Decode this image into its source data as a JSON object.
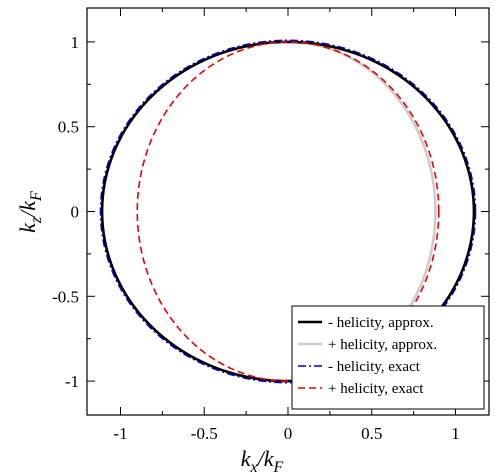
{
  "chart_data": {
    "type": "line",
    "title": "",
    "xlabel": {
      "main": "k",
      "sub1": "x",
      "sep": "/k",
      "sub2": "F"
    },
    "ylabel": {
      "main": "k",
      "sub1": "z",
      "sep": "/k",
      "sub2": "F"
    },
    "xlim": [
      -1.2,
      1.2
    ],
    "ylim": [
      -1.2,
      1.2
    ],
    "xticks": [
      -1,
      -0.5,
      0,
      0.5,
      1
    ],
    "xtick_labels": [
      "-1",
      "-0.5",
      "0",
      "0.5",
      "1"
    ],
    "yticks": [
      -1,
      -0.5,
      0,
      0.5,
      1
    ],
    "ytick_labels": [
      "-1",
      "-0.5",
      "0",
      "0.5",
      "1"
    ],
    "grid": false,
    "legend_position": "bottom-right",
    "series": [
      {
        "name": "- helicity, approx.",
        "color": "#000000",
        "style": "solid",
        "shape": "ellipse",
        "center": [
          0,
          0
        ],
        "semi_axis_x": 1.11,
        "semi_axis_z": 1.0
      },
      {
        "name": "+ helicity, approx.",
        "color": "#cccccc",
        "style": "solid",
        "shape": "half_crescent",
        "center": [
          0,
          0
        ],
        "semi_axis_x": 0.88,
        "semi_axis_z": 1.0,
        "x_range": [
          -0.88,
          0.88
        ]
      },
      {
        "name": "- helicity, exact",
        "color": "#0000cc",
        "style": "dashdot",
        "shape": "ellipse",
        "center": [
          0,
          0
        ],
        "semi_axis_x": 1.12,
        "semi_axis_z": 1.01
      },
      {
        "name": "+ helicity, exact",
        "color": "#ee0000",
        "style": "dashed",
        "shape": "ellipse",
        "center": [
          0,
          0
        ],
        "semi_axis_x": 0.9,
        "semi_axis_z": 1.0
      }
    ]
  }
}
